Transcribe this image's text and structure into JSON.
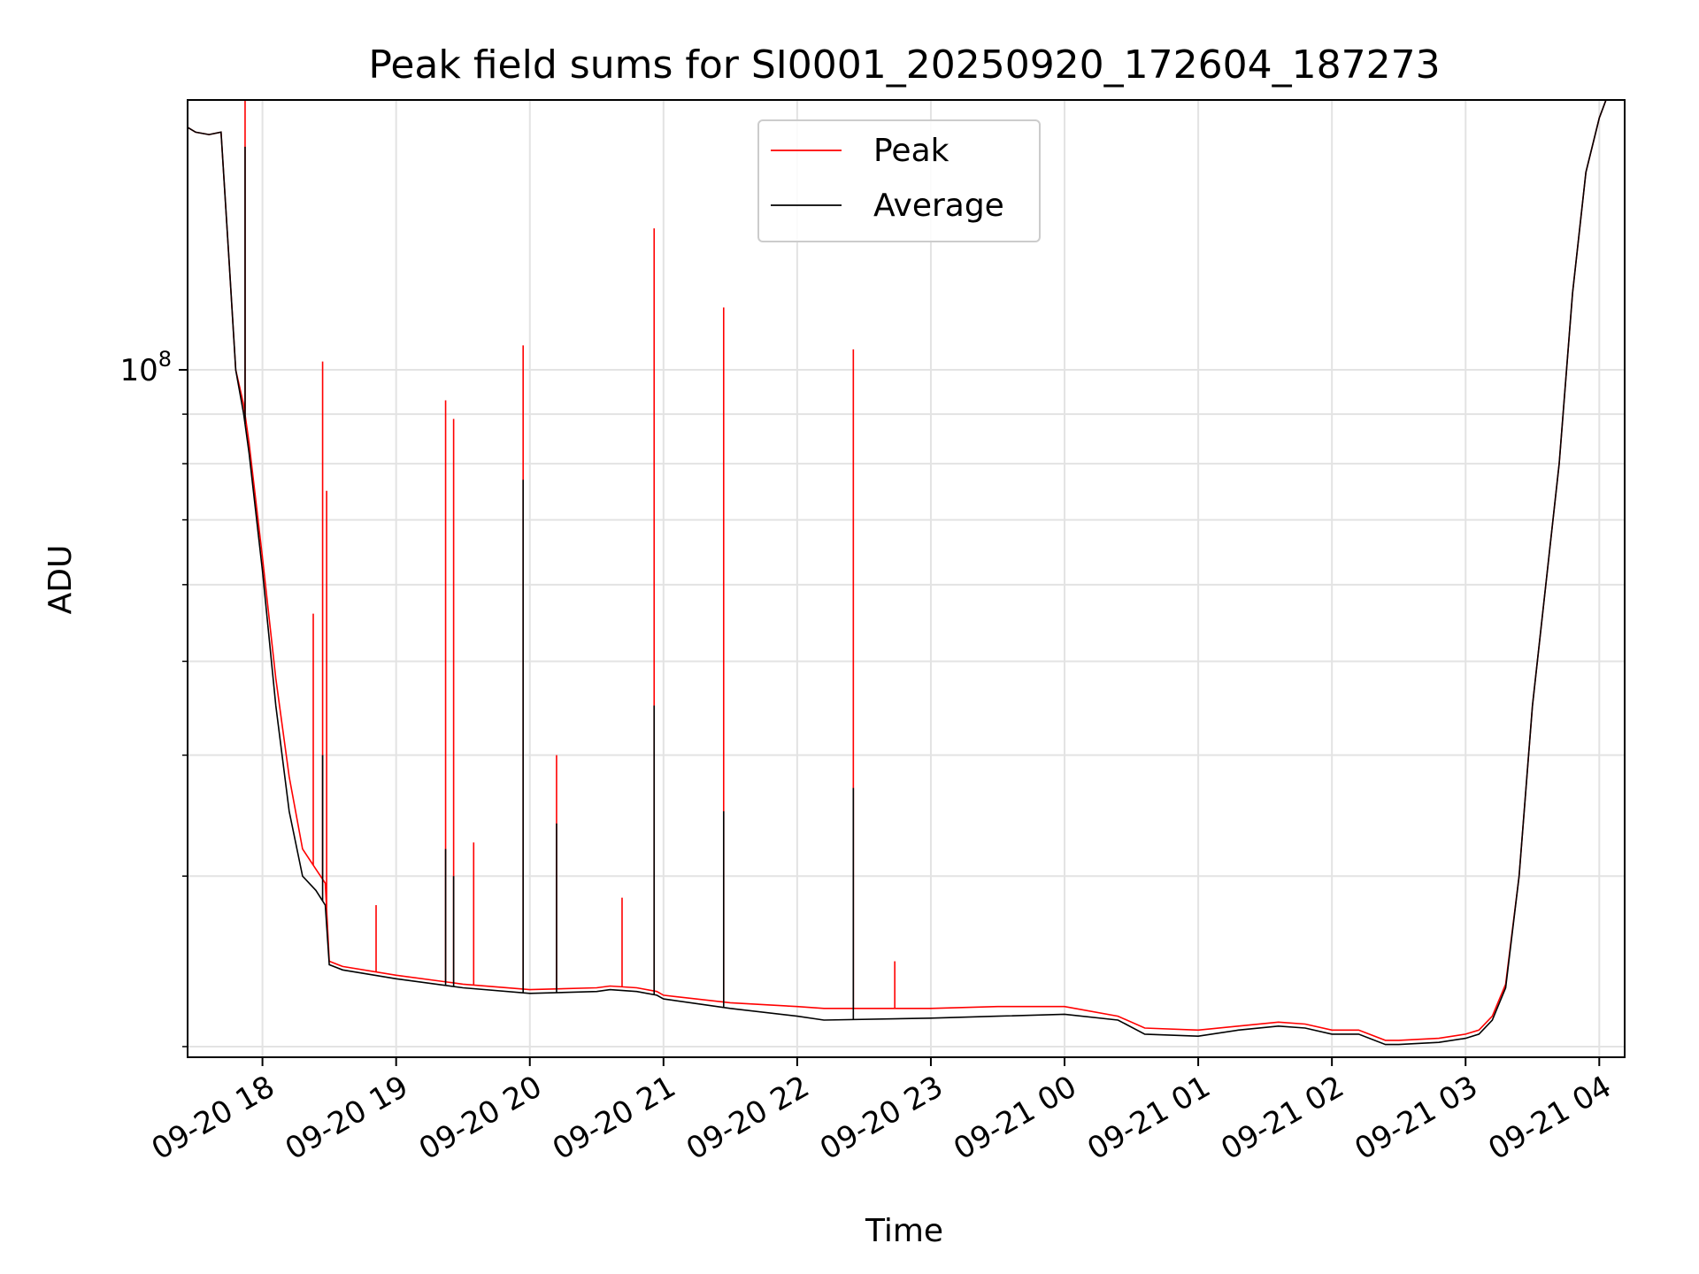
{
  "chart_data": {
    "type": "line",
    "title": "Peak field sums for SI0001_20250920_172604_187273",
    "xlabel": "Time",
    "ylabel": "ADU",
    "yscale": "log",
    "x_unit": "hours since 2025-09-20 00:00",
    "xlim": [
      17.44,
      28.19
    ],
    "ylim": [
      19500000,
      190000000
    ],
    "x_ticks": [
      {
        "value": 18,
        "label": "09-20 18"
      },
      {
        "value": 19,
        "label": "09-20 19"
      },
      {
        "value": 20,
        "label": "09-20 20"
      },
      {
        "value": 21,
        "label": "09-20 21"
      },
      {
        "value": 22,
        "label": "09-20 22"
      },
      {
        "value": 23,
        "label": "09-20 23"
      },
      {
        "value": 24,
        "label": "09-21 00"
      },
      {
        "value": 25,
        "label": "09-21 01"
      },
      {
        "value": 26,
        "label": "09-21 02"
      },
      {
        "value": 27,
        "label": "09-21 03"
      },
      {
        "value": 28,
        "label": "09-21 04"
      }
    ],
    "y_major_ticks": [
      {
        "value": 100000000,
        "base": "10",
        "exponent": "8"
      }
    ],
    "y_minor_ticks": [
      20000000,
      30000000,
      40000000,
      50000000,
      60000000,
      70000000,
      80000000,
      90000000,
      200000000
    ],
    "grid": true,
    "legend": {
      "position": "top-center",
      "entries": [
        "Peak",
        "Average"
      ]
    },
    "series": [
      {
        "name": "Average",
        "color": "#000000",
        "x": [
          17.44,
          17.5,
          17.6,
          17.69,
          17.75,
          17.8,
          17.86,
          17.9,
          18.0,
          18.1,
          18.2,
          18.3,
          18.4,
          18.47,
          18.5,
          18.6,
          19.0,
          19.5,
          20.0,
          20.5,
          20.6,
          20.8,
          20.95,
          21.0,
          21.5,
          22.0,
          22.2,
          23.0,
          23.5,
          24.0,
          24.4,
          24.6,
          25.0,
          25.3,
          25.6,
          25.8,
          26.0,
          26.2,
          26.4,
          26.5,
          26.8,
          27.0,
          27.1,
          27.2,
          27.3,
          27.4,
          27.5,
          27.6,
          27.7,
          27.8,
          27.9,
          28.0,
          28.05,
          28.19
        ],
        "y": [
          178000000,
          176000000,
          175000000,
          176000000,
          130000000,
          100000000,
          90000000,
          82000000,
          62000000,
          45000000,
          35000000,
          30000000,
          29000000,
          28000000,
          24300000,
          24000000,
          23500000,
          23000000,
          22700000,
          22800000,
          22900000,
          22800000,
          22600000,
          22400000,
          21900000,
          21500000,
          21300000,
          21400000,
          21500000,
          21600000,
          21300000,
          20600000,
          20500000,
          20800000,
          21000000,
          20900000,
          20600000,
          20600000,
          20100000,
          20100000,
          20200000,
          20400000,
          20600000,
          21300000,
          23000000,
          30000000,
          45000000,
          60000000,
          80000000,
          120000000,
          160000000,
          182000000,
          190000000,
          190000000
        ]
      },
      {
        "name": "Peak",
        "color": "#ff0000",
        "x": [
          17.44,
          17.5,
          17.6,
          17.69,
          17.75,
          17.8,
          17.86,
          17.9,
          18.0,
          18.1,
          18.2,
          18.3,
          18.4,
          18.47,
          18.5,
          18.6,
          19.0,
          19.5,
          20.0,
          20.5,
          20.6,
          20.8,
          20.95,
          21.0,
          21.5,
          22.0,
          22.2,
          23.0,
          23.5,
          24.0,
          24.4,
          24.6,
          25.0,
          25.3,
          25.6,
          25.8,
          26.0,
          26.2,
          26.4,
          26.5,
          26.8,
          27.0,
          27.1,
          27.2,
          27.3,
          27.4,
          27.5,
          27.6,
          27.7,
          27.8,
          27.9,
          28.0,
          28.05,
          28.19
        ],
        "y": [
          178000000,
          176000000,
          175000000,
          176000000,
          130000000,
          100000000,
          92000000,
          84000000,
          64000000,
          48000000,
          38000000,
          32000000,
          30500000,
          29500000,
          24500000,
          24200000,
          23700000,
          23200000,
          22900000,
          23000000,
          23100000,
          23000000,
          22800000,
          22600000,
          22200000,
          22000000,
          21900000,
          21900000,
          22000000,
          22000000,
          21500000,
          20900000,
          20800000,
          21000000,
          21200000,
          21100000,
          20800000,
          20800000,
          20300000,
          20300000,
          20400000,
          20600000,
          20800000,
          21500000,
          23200000,
          30000000,
          45000000,
          60000000,
          80000000,
          120000000,
          160000000,
          182000000,
          190000000,
          190000000
        ]
      }
    ],
    "spikes": [
      {
        "series": "Peak",
        "x": 17.87,
        "y": 190000000
      },
      {
        "series": "Average",
        "x": 17.87,
        "y": 170000000
      },
      {
        "series": "Peak",
        "x": 18.38,
        "y": 56000000
      },
      {
        "series": "Peak",
        "x": 18.45,
        "y": 102000000
      },
      {
        "series": "Average",
        "x": 18.45,
        "y": 40000000
      },
      {
        "series": "Peak",
        "x": 18.48,
        "y": 75000000
      },
      {
        "series": "Peak",
        "x": 18.85,
        "y": 28000000
      },
      {
        "series": "Peak",
        "x": 19.37,
        "y": 93000000
      },
      {
        "series": "Average",
        "x": 19.37,
        "y": 32000000
      },
      {
        "series": "Peak",
        "x": 19.43,
        "y": 89000000
      },
      {
        "series": "Average",
        "x": 19.43,
        "y": 30000000
      },
      {
        "series": "Peak",
        "x": 19.58,
        "y": 32500000
      },
      {
        "series": "Peak",
        "x": 19.95,
        "y": 106000000
      },
      {
        "series": "Average",
        "x": 19.95,
        "y": 77000000
      },
      {
        "series": "Peak",
        "x": 20.2,
        "y": 40000000
      },
      {
        "series": "Average",
        "x": 20.2,
        "y": 34000000
      },
      {
        "series": "Peak",
        "x": 20.69,
        "y": 28500000
      },
      {
        "series": "Peak",
        "x": 20.93,
        "y": 140000000
      },
      {
        "series": "Average",
        "x": 20.93,
        "y": 45000000
      },
      {
        "series": "Peak",
        "x": 21.45,
        "y": 116000000
      },
      {
        "series": "Average",
        "x": 21.45,
        "y": 35000000
      },
      {
        "series": "Peak",
        "x": 22.42,
        "y": 105000000
      },
      {
        "series": "Average",
        "x": 22.42,
        "y": 37000000
      },
      {
        "series": "Peak",
        "x": 22.73,
        "y": 24500000
      }
    ]
  }
}
